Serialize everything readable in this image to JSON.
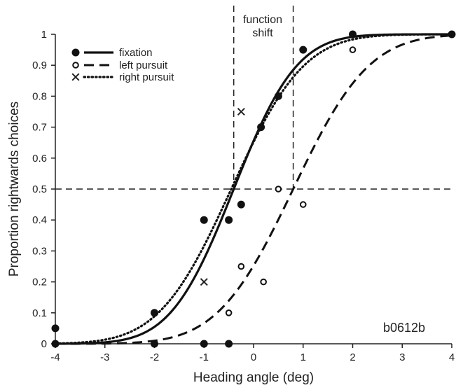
{
  "chart_data": {
    "type": "scatter",
    "xlabel": "Heading angle (deg)",
    "ylabel": "Proportion rightwards choices",
    "xlim": [
      -4,
      4
    ],
    "ylim": [
      0,
      1
    ],
    "xticks": [
      -4,
      -3,
      -2,
      -1,
      0,
      1,
      2,
      3,
      4
    ],
    "yticks": [
      0,
      0.1,
      0.2,
      0.3,
      0.4,
      0.5,
      0.6,
      0.7,
      0.8,
      0.9,
      1
    ],
    "xtick_labels": [
      "-4",
      "-3",
      "-2",
      "-1",
      "0",
      "1",
      "2",
      "3",
      "4"
    ],
    "ytick_labels": [
      "0",
      "0.1",
      "0.2",
      "0.3",
      "0.4",
      "0.5",
      "0.6",
      "0.7",
      "0.8",
      "0.9",
      "1"
    ],
    "grid": false,
    "legend_position": "top-left",
    "series": [
      {
        "name": "fixation",
        "marker": "filled-circle",
        "line": "solid",
        "points": [
          {
            "x": -4,
            "y": 0.05
          },
          {
            "x": -4,
            "y": 0
          },
          {
            "x": -2,
            "y": 0.1
          },
          {
            "x": -2,
            "y": 0
          },
          {
            "x": -1,
            "y": 0.4
          },
          {
            "x": -1,
            "y": 0
          },
          {
            "x": -0.5,
            "y": 0.4
          },
          {
            "x": -0.5,
            "y": 0
          },
          {
            "x": -0.25,
            "y": 0.45
          },
          {
            "x": 0.15,
            "y": 0.7
          },
          {
            "x": 0.5,
            "y": 0.8
          },
          {
            "x": 1,
            "y": 0.95
          },
          {
            "x": 2,
            "y": 1
          },
          {
            "x": 4,
            "y": 1
          }
        ],
        "fit": {
          "mu": -0.4,
          "sigma": 1.0
        }
      },
      {
        "name": "left pursuit",
        "marker": "open-circle",
        "line": "dashed",
        "points": [
          {
            "x": -0.5,
            "y": 0.1
          },
          {
            "x": -0.25,
            "y": 0.25
          },
          {
            "x": 0.2,
            "y": 0.2
          },
          {
            "x": 0.5,
            "y": 0.5
          },
          {
            "x": 1,
            "y": 0.45
          },
          {
            "x": 2,
            "y": 0.95
          }
        ],
        "fit": {
          "mu": 0.8,
          "sigma": 1.2
        }
      },
      {
        "name": "right pursuit",
        "marker": "x",
        "line": "dotted",
        "points": [
          {
            "x": -1,
            "y": 0.2
          },
          {
            "x": -0.25,
            "y": 0.75
          }
        ],
        "fit": {
          "mu": -0.45,
          "sigma": 1.15
        }
      }
    ],
    "reference_lines": {
      "horizontal": [
        0.5
      ],
      "vertical": [
        -0.4,
        0.8
      ]
    },
    "annotations": {
      "function_shift_line1": "function",
      "function_shift_line2": "shift",
      "code": "b0612b"
    }
  }
}
